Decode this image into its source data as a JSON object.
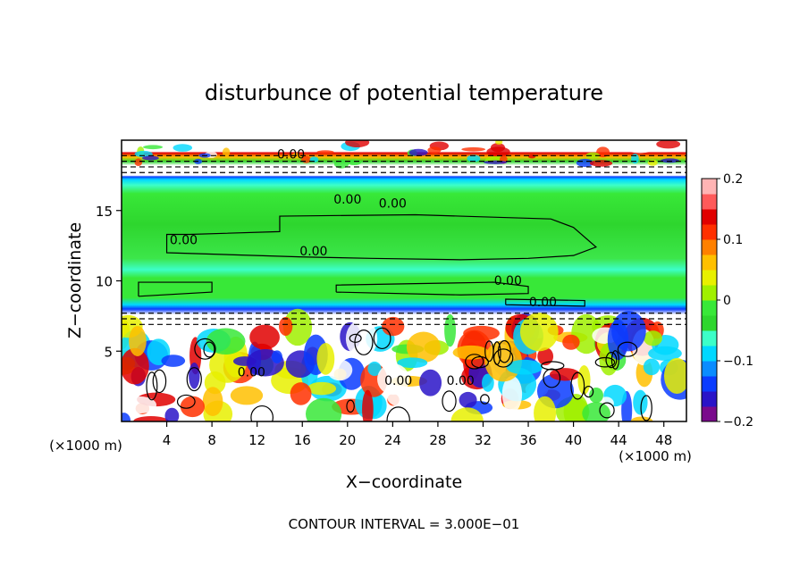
{
  "chart_data": {
    "type": "heatmap",
    "title": "disturbunce of potential temperature",
    "xlabel": "X−coordinate",
    "ylabel": "Z−coordinate",
    "x_unit": "(×1000 m)",
    "y_unit": "(×1000 m)",
    "xlim": [
      0,
      50
    ],
    "ylim": [
      0,
      20
    ],
    "x_ticks": [
      4,
      8,
      12,
      16,
      20,
      24,
      28,
      32,
      36,
      40,
      44,
      48
    ],
    "y_ticks": [
      5,
      10,
      15
    ],
    "colorbar": {
      "range": [
        -0.2,
        0.2
      ],
      "ticks": [
        -0.2,
        -0.1,
        0,
        0.1,
        0.2
      ],
      "tick_labels": [
        "−0.2",
        "−0.1",
        "0",
        "0.1",
        "0.2"
      ],
      "colors": [
        "#7a0a8c",
        "#2a14c8",
        "#0a3cff",
        "#0a8cff",
        "#00d8ff",
        "#3cffc8",
        "#2ed62e",
        "#38e838",
        "#a0f000",
        "#e8f000",
        "#ffc000",
        "#ff8000",
        "#ff3000",
        "#e00000",
        "#ff5a5a",
        "#ffb4b4"
      ]
    },
    "contour_labels": [
      {
        "text": "0.00",
        "x": 15.0,
        "z": 18.7
      },
      {
        "text": "0.00",
        "x": 20.0,
        "z": 15.5
      },
      {
        "text": "0.00",
        "x": 24.0,
        "z": 15.2
      },
      {
        "text": "0.00",
        "x": 5.5,
        "z": 12.6
      },
      {
        "text": "0.00",
        "x": 17.0,
        "z": 11.8
      },
      {
        "text": "0.00",
        "x": 34.2,
        "z": 9.7
      },
      {
        "text": "0.00",
        "x": 37.3,
        "z": 8.2
      },
      {
        "text": "0.00",
        "x": 11.5,
        "z": 3.2
      },
      {
        "text": "0.00",
        "x": 24.5,
        "z": 2.6
      },
      {
        "text": "0.00",
        "x": 30.0,
        "z": 2.6
      }
    ],
    "footer": "CONTOUR INTERVAL = 3.000E−01"
  }
}
